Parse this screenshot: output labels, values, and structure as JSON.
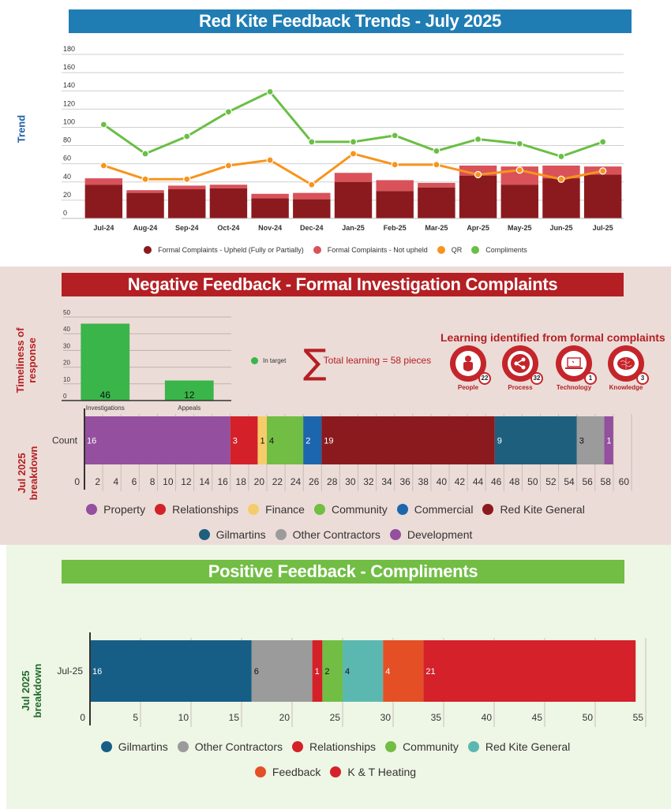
{
  "trends": {
    "banner": "Red Kite Feedback Trends - July 2025",
    "y_title": "Trend",
    "chart_data": {
      "type": "bar+line",
      "title": "Red Kite Feedback Trends - July 2025",
      "ylabel": "Trend",
      "xlabel": "",
      "ylim": [
        0,
        180
      ],
      "yticks": [
        0,
        20,
        40,
        60,
        80,
        100,
        120,
        140,
        160,
        180
      ],
      "grid": true,
      "legend_position": "bottom",
      "categories": [
        "Jul-24",
        "Aug-24",
        "Sep-24",
        "Oct-24",
        "Nov-24",
        "Dec-24",
        "Jan-25",
        "Feb-25",
        "Mar-25",
        "Apr-25",
        "May-25",
        "Jun-25",
        "Jul-25"
      ],
      "series": [
        {
          "name": "Formal Complaints - Upheld (Fully or Partially)",
          "type": "stacked-bar",
          "color": "#8b1a1e",
          "values": [
            37,
            28,
            32,
            33,
            22,
            21,
            40,
            30,
            34,
            47,
            37,
            44,
            48
          ]
        },
        {
          "name": "Formal Complaints - Not upheld",
          "type": "stacked-bar",
          "color": "#d9525a",
          "values": [
            7,
            3,
            4,
            4,
            5,
            7,
            10,
            12,
            5,
            11,
            20,
            14,
            9
          ]
        },
        {
          "name": "QR",
          "type": "line",
          "color": "#f7941d",
          "values": [
            58,
            43,
            43,
            58,
            64,
            37,
            71,
            59,
            59,
            48,
            53,
            43,
            52
          ]
        },
        {
          "name": "Compliments",
          "type": "line",
          "color": "#6abf45",
          "values": [
            103,
            71,
            90,
            117,
            139,
            84,
            84,
            91,
            74,
            87,
            82,
            68,
            84
          ]
        }
      ]
    }
  },
  "negative": {
    "banner": "Negative Feedback - Formal Investigation Complaints",
    "timeliness_label_line1": "Timeliness of",
    "timeliness_label_line2": "response",
    "breakdown_label_line1": "Jul 2025",
    "breakdown_label_line2": "breakdown",
    "in_target_label": "In target",
    "total_learning_text": "Total learning = 58 pieces",
    "sigma_glyph": "∑",
    "learning_title": "Learning identified from formal complaints",
    "learning": [
      {
        "label": "People",
        "count": "22",
        "icon": "person-icon"
      },
      {
        "label": "Process",
        "count": "32",
        "icon": "share-icon"
      },
      {
        "label": "Technology",
        "count": "1",
        "icon": "laptop-icon"
      },
      {
        "label": "Knowledge",
        "count": "3",
        "icon": "brain-icon"
      }
    ],
    "chart_data": [
      {
        "type": "bar",
        "title": "Timeliness of response",
        "categories": [
          "Investigations",
          "Appeals"
        ],
        "values": [
          46,
          12
        ],
        "series_name": "In target",
        "color": "#39b54a",
        "ylim": [
          0,
          50
        ],
        "yticks": [
          0,
          10,
          20,
          30,
          40,
          50
        ],
        "grid": true
      },
      {
        "type": "bar",
        "orientation": "horizontal-stacked",
        "title": "Jul 2025 breakdown",
        "category": "Count",
        "xlim": [
          0,
          60
        ],
        "xticks": [
          0,
          2,
          4,
          6,
          8,
          10,
          12,
          14,
          16,
          18,
          20,
          22,
          24,
          26,
          28,
          30,
          32,
          34,
          36,
          38,
          40,
          42,
          44,
          46,
          48,
          50,
          52,
          54,
          56,
          58,
          60
        ],
        "legend_position": "bottom",
        "series": [
          {
            "name": "Property",
            "value": 16,
            "color": "#944f9e",
            "label_color": "#ffffff"
          },
          {
            "name": "Relationships",
            "value": 3,
            "color": "#d42129",
            "label_color": "#ffffff"
          },
          {
            "name": "Finance",
            "value": 1,
            "color": "#f6cc6b",
            "label_color": "#111111"
          },
          {
            "name": "Community",
            "value": 4,
            "color": "#72bd44",
            "label_color": "#111111"
          },
          {
            "name": "Commercial",
            "value": 2,
            "color": "#1c66ae",
            "label_color": "#ffffff"
          },
          {
            "name": "Red Kite General",
            "value": 19,
            "color": "#8b1a1e",
            "label_color": "#ffffff"
          },
          {
            "name": "Gilmartins",
            "value": 9,
            "color": "#1f5f7e",
            "label_color": "#ffffff"
          },
          {
            "name": "Other Contractors",
            "value": 3,
            "color": "#9b9b9b",
            "label_color": "#111111"
          },
          {
            "name": "Development",
            "value": 1,
            "color": "#944f9e",
            "label_color": "#ffffff"
          }
        ]
      }
    ]
  },
  "positive": {
    "banner": "Positive Feedback - Compliments",
    "breakdown_label_line1": "Jul 2025",
    "breakdown_label_line2": "breakdown",
    "chart_data": {
      "type": "bar",
      "orientation": "horizontal-stacked",
      "title": "Jul 2025 breakdown",
      "category": "Jul-25",
      "xlim": [
        0,
        55
      ],
      "xticks": [
        0,
        5,
        10,
        15,
        20,
        25,
        30,
        35,
        40,
        45,
        50,
        55
      ],
      "legend_position": "bottom",
      "series": [
        {
          "name": "Gilmartins",
          "value": 16,
          "color": "#175e87",
          "label_color": "#ffffff"
        },
        {
          "name": "Other Contractors",
          "value": 6,
          "color": "#9b9b9b",
          "label_color": "#111111"
        },
        {
          "name": "Relationships",
          "value": 1,
          "color": "#d42129",
          "label_color": "#ffffff"
        },
        {
          "name": "Community",
          "value": 2,
          "color": "#72bd44",
          "label_color": "#111111"
        },
        {
          "name": "Red Kite General",
          "value": 4,
          "color": "#5bb8b0",
          "label_color": "#111111"
        },
        {
          "name": "Feedback",
          "value": 4,
          "color": "#e44f25",
          "label_color": "#ffffff"
        },
        {
          "name": "K & T Heating",
          "value": 21,
          "color": "#d4212a",
          "label_color": "#ffffff"
        }
      ]
    }
  }
}
